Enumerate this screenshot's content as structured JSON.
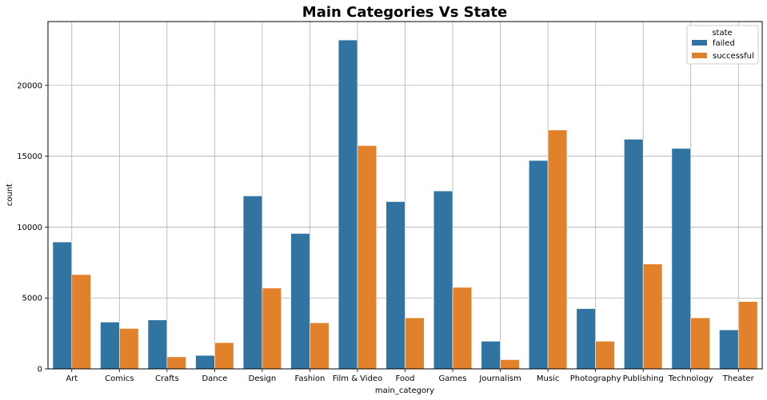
{
  "chart_data": {
    "type": "bar",
    "title": "Main Categories Vs State",
    "xlabel": "main_category",
    "ylabel": "count",
    "ylim": [
      0,
      24500
    ],
    "yticks": [
      0,
      5000,
      10000,
      15000,
      20000
    ],
    "grid": true,
    "legend": {
      "title": "state",
      "placement": "top-right"
    },
    "categories": [
      "Art",
      "Comics",
      "Crafts",
      "Dance",
      "Design",
      "Fashion",
      "Film & Video",
      "Food",
      "Games",
      "Journalism",
      "Music",
      "Photography",
      "Publishing",
      "Technology",
      "Theater"
    ],
    "series": [
      {
        "name": "failed",
        "color": "#3274a1",
        "values": [
          8950,
          3300,
          3450,
          950,
          12200,
          9550,
          23200,
          11800,
          12550,
          1950,
          14700,
          4250,
          16200,
          15550,
          2750
        ]
      },
      {
        "name": "successful",
        "color": "#e1812c",
        "values": [
          6650,
          2850,
          850,
          1850,
          5700,
          3250,
          15750,
          3600,
          5750,
          650,
          16850,
          1950,
          7400,
          3600,
          4750
        ]
      }
    ]
  }
}
